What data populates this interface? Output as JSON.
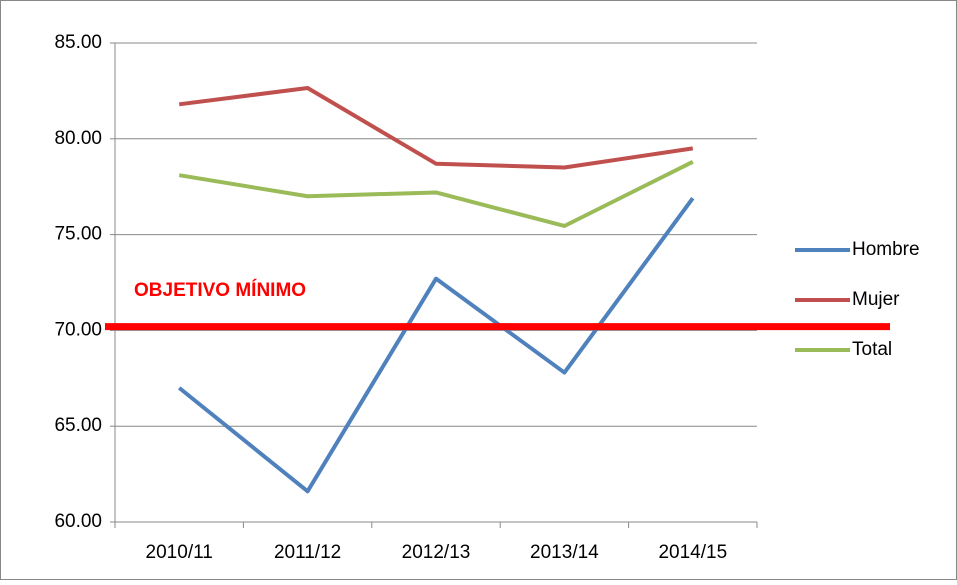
{
  "chart_data": {
    "type": "line",
    "categories": [
      "2010/11",
      "2011/12",
      "2012/13",
      "2013/14",
      "2014/15"
    ],
    "series": [
      {
        "name": "Hombre",
        "color": "#4f81bd",
        "values": [
          67.0,
          61.6,
          72.7,
          67.8,
          76.9
        ]
      },
      {
        "name": "Mujer",
        "color": "#c0504d",
        "values": [
          81.8,
          82.65,
          78.7,
          78.5,
          79.5
        ]
      },
      {
        "name": "Total",
        "color": "#9bbb59",
        "values": [
          78.1,
          77.0,
          77.2,
          75.45,
          78.8
        ]
      }
    ],
    "ylim": [
      60,
      85
    ],
    "yticks": [
      {
        "value": 60,
        "label": "60.00"
      },
      {
        "value": 65,
        "label": "65.00"
      },
      {
        "value": 70,
        "label": "70.00"
      },
      {
        "value": 75,
        "label": "75.00"
      },
      {
        "value": 80,
        "label": "80.00"
      },
      {
        "value": 85,
        "label": "85.00"
      }
    ],
    "grid": true,
    "legend": "right",
    "reference_line": {
      "label": "OBJETIVO MÍNIMO",
      "value": 70.2,
      "color": "#ff0000"
    }
  }
}
